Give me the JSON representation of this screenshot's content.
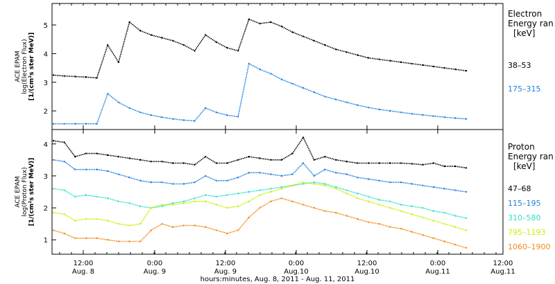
{
  "chart_data": [
    {
      "type": "scatter",
      "panel": "electron",
      "ylabel_lines": [
        "ACE EPAM",
        "log(Electron Flux)",
        "[1/(cm²s ster MeV)]"
      ],
      "ylim": [
        1.35,
        5.75
      ],
      "yticks": [
        2,
        3,
        4,
        5
      ],
      "legend_title": [
        "Electron",
        "Energy ran",
        "[keV]"
      ],
      "series": [
        {
          "name": "38–53",
          "color": "#000000",
          "values": [
            3.25,
            3.22,
            3.2,
            3.18,
            3.15,
            4.3,
            3.7,
            5.1,
            4.8,
            4.65,
            4.55,
            4.45,
            4.3,
            4.1,
            4.65,
            4.4,
            4.2,
            4.1,
            5.2,
            5.05,
            5.1,
            4.95,
            4.75,
            4.6,
            4.45,
            4.3,
            4.15,
            4.05,
            3.95,
            3.85,
            3.8,
            3.75,
            3.7,
            3.65,
            3.6,
            3.55,
            3.5,
            3.45,
            3.4
          ]
        },
        {
          "name": "175–315",
          "color": "#1f7fe0",
          "values": [
            1.55,
            1.55,
            1.55,
            1.55,
            1.55,
            2.6,
            2.3,
            2.1,
            1.95,
            1.85,
            1.78,
            1.72,
            1.68,
            1.65,
            2.1,
            1.95,
            1.85,
            1.8,
            3.65,
            3.45,
            3.3,
            3.1,
            2.95,
            2.8,
            2.65,
            2.5,
            2.4,
            2.3,
            2.2,
            2.12,
            2.05,
            2.0,
            1.95,
            1.9,
            1.86,
            1.82,
            1.78,
            1.75,
            1.72
          ]
        }
      ]
    },
    {
      "type": "scatter",
      "panel": "proton",
      "ylabel_lines": [
        "ACE EPAM",
        "log(Proton Flux)",
        "[1/(cm²s ster MeV)]"
      ],
      "ylim": [
        0.55,
        4.45
      ],
      "yticks": [
        1,
        2,
        3,
        4
      ],
      "legend_title": [
        "Proton",
        "Energy ran",
        "[keV]"
      ],
      "series": [
        {
          "name": "47–68",
          "color": "#000000",
          "values": [
            4.1,
            4.05,
            3.6,
            3.7,
            3.7,
            3.65,
            3.6,
            3.55,
            3.5,
            3.45,
            3.45,
            3.4,
            3.4,
            3.35,
            3.6,
            3.4,
            3.4,
            3.5,
            3.6,
            3.55,
            3.5,
            3.5,
            3.7,
            4.2,
            3.5,
            3.6,
            3.5,
            3.45,
            3.4,
            3.4,
            3.4,
            3.4,
            3.4,
            3.38,
            3.35,
            3.4,
            3.3,
            3.3,
            3.25
          ]
        },
        {
          "name": "115–195",
          "color": "#1f7fe0",
          "values": [
            3.5,
            3.45,
            3.2,
            3.2,
            3.2,
            3.15,
            3.05,
            2.95,
            2.85,
            2.8,
            2.8,
            2.75,
            2.75,
            2.8,
            3.0,
            2.85,
            2.85,
            2.95,
            3.1,
            3.1,
            3.05,
            3.0,
            3.05,
            3.4,
            3.0,
            3.2,
            3.1,
            3.05,
            2.95,
            2.9,
            2.85,
            2.8,
            2.8,
            2.75,
            2.7,
            2.65,
            2.6,
            2.55,
            2.5
          ]
        },
        {
          "name": "310–580",
          "color": "#2fe0c8",
          "values": [
            2.6,
            2.55,
            2.35,
            2.4,
            2.35,
            2.3,
            2.2,
            2.15,
            2.05,
            2.0,
            2.05,
            2.15,
            2.2,
            2.3,
            2.4,
            2.35,
            2.4,
            2.45,
            2.5,
            2.55,
            2.6,
            2.65,
            2.7,
            2.75,
            2.8,
            2.75,
            2.65,
            2.55,
            2.45,
            2.35,
            2.25,
            2.2,
            2.1,
            2.05,
            2.0,
            1.9,
            1.85,
            1.75,
            1.68
          ]
        },
        {
          "name": "795–1193",
          "color": "#c8f000",
          "values": [
            1.85,
            1.8,
            1.6,
            1.65,
            1.65,
            1.6,
            1.5,
            1.45,
            1.5,
            2.0,
            2.1,
            2.1,
            2.15,
            2.2,
            2.2,
            2.1,
            2.0,
            2.05,
            2.2,
            2.4,
            2.5,
            2.6,
            2.7,
            2.8,
            2.75,
            2.7,
            2.6,
            2.45,
            2.3,
            2.2,
            2.1,
            2.0,
            1.9,
            1.8,
            1.7,
            1.6,
            1.5,
            1.4,
            1.3
          ]
        },
        {
          "name": "1060–1900",
          "color": "#f08a1a",
          "values": [
            1.3,
            1.2,
            1.05,
            1.05,
            1.05,
            1.0,
            0.95,
            0.95,
            0.95,
            1.3,
            1.5,
            1.4,
            1.45,
            1.45,
            1.4,
            1.3,
            1.2,
            1.3,
            1.7,
            2.0,
            2.2,
            2.3,
            2.2,
            2.1,
            2.0,
            1.9,
            1.85,
            1.75,
            1.65,
            1.55,
            1.5,
            1.4,
            1.35,
            1.25,
            1.15,
            1.05,
            0.95,
            0.85,
            0.75
          ]
        }
      ]
    }
  ],
  "x_axis": {
    "tick_labels_top": [
      "12:00",
      "0:00",
      "12:00",
      "0:00",
      "12:00",
      "0:00",
      "12:00"
    ],
    "tick_labels_bottom": [
      "Aug. 8",
      "Aug. 9",
      "Aug. 9",
      "Aug.10",
      "Aug.10",
      "Aug.11",
      "Aug.11"
    ],
    "title": "hours:minutes, Aug.  8, 2011 - Aug. 11, 2011"
  }
}
